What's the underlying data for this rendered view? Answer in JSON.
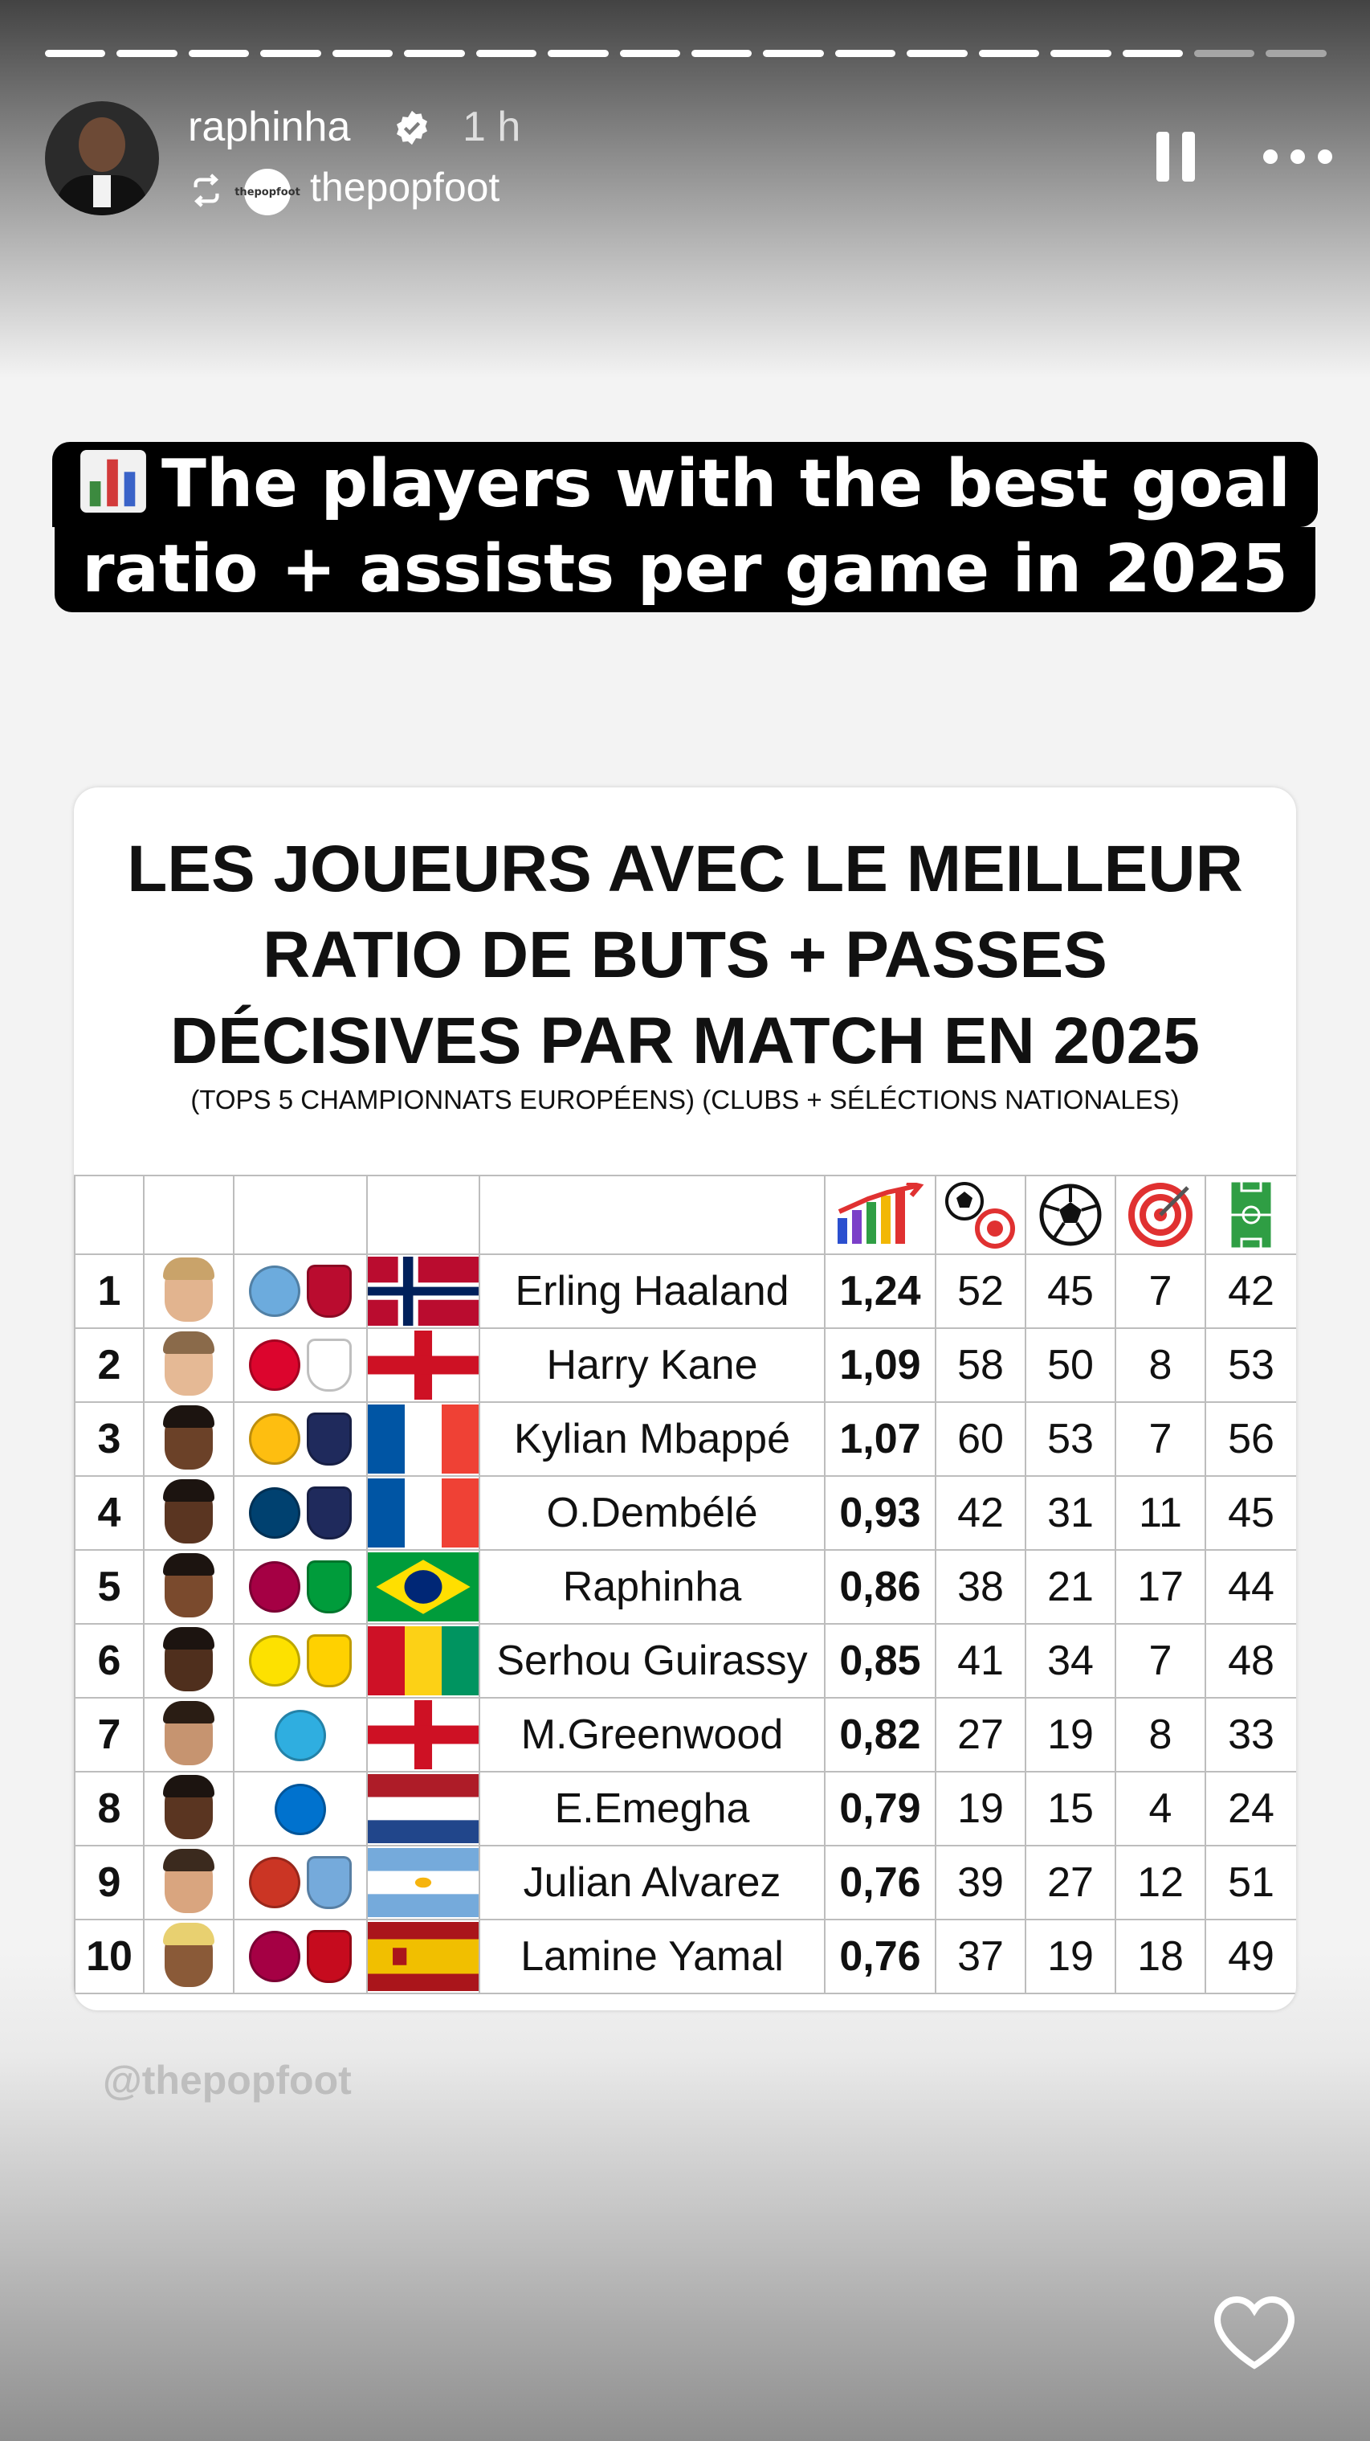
{
  "progress": {
    "total_segments": 18,
    "completed_segments": 16
  },
  "header": {
    "username": "raphinha",
    "time": "1 h",
    "source_account": "thepopfoot",
    "source_avatar_text": "thepopfoot"
  },
  "caption": {
    "emoji": "bar-chart-icon",
    "line1": "The players with the best goal",
    "line2": "ratio + assists per game in 2025"
  },
  "card": {
    "title_lines": [
      "LES JOUEURS AVEC LE MEILLEUR",
      "RATIO DE BUTS + PASSES",
      "DÉCISIVES PAR MATCH EN 2025"
    ],
    "subtitle": "(TOPS 5 CHAMPIONNATS EUROPÉENS) (CLUBS + SÉLÉCTIONS NATIONALES)",
    "column_icons": [
      "ratio-chart-icon",
      "ball-target-icon",
      "football-icon",
      "target-icon",
      "pitch-icon"
    ],
    "rows": [
      {
        "rank": "1",
        "name": "Erling Haaland",
        "ratio": "1,24",
        "ga": "52",
        "goals": "45",
        "assists": "7",
        "matches": "42",
        "flag": "norway",
        "crests": [
          "man-city-crest",
          "norway-crest"
        ]
      },
      {
        "rank": "2",
        "name": "Harry Kane",
        "ratio": "1,09",
        "ga": "58",
        "goals": "50",
        "assists": "8",
        "matches": "53",
        "flag": "england",
        "crests": [
          "bayern-crest",
          "england-crest"
        ]
      },
      {
        "rank": "3",
        "name": "Kylian Mbappé",
        "ratio": "1,07",
        "ga": "60",
        "goals": "53",
        "assists": "7",
        "matches": "56",
        "flag": "france",
        "crests": [
          "real-madrid-crest",
          "france-crest"
        ]
      },
      {
        "rank": "4",
        "name": "O.Dembélé",
        "ratio": "0,93",
        "ga": "42",
        "goals": "31",
        "assists": "11",
        "matches": "45",
        "flag": "france",
        "crests": [
          "psg-crest",
          "france-crest"
        ]
      },
      {
        "rank": "5",
        "name": "Raphinha",
        "ratio": "0,86",
        "ga": "38",
        "goals": "21",
        "assists": "17",
        "matches": "44",
        "flag": "brazil",
        "crests": [
          "barcelona-crest",
          "brazil-crest"
        ]
      },
      {
        "rank": "6",
        "name": "Serhou Guirassy",
        "ratio": "0,85",
        "ga": "41",
        "goals": "34",
        "assists": "7",
        "matches": "48",
        "flag": "guinea",
        "crests": [
          "dortmund-crest",
          "guinea-crest"
        ]
      },
      {
        "rank": "7",
        "name": "M.Greenwood",
        "ratio": "0,82",
        "ga": "27",
        "goals": "19",
        "assists": "8",
        "matches": "33",
        "flag": "england",
        "crests": [
          "marseille-crest"
        ]
      },
      {
        "rank": "8",
        "name": "E.Emegha",
        "ratio": "0,79",
        "ga": "19",
        "goals": "15",
        "assists": "4",
        "matches": "24",
        "flag": "netherlands",
        "crests": [
          "strasbourg-crest"
        ]
      },
      {
        "rank": "9",
        "name": "Julian Alvarez",
        "ratio": "0,76",
        "ga": "39",
        "goals": "27",
        "assists": "12",
        "matches": "51",
        "flag": "argentina",
        "crests": [
          "atletico-crest",
          "argentina-crest"
        ]
      },
      {
        "rank": "10",
        "name": "Lamine Yamal",
        "ratio": "0,76",
        "ga": "37",
        "goals": "19",
        "assists": "18",
        "matches": "49",
        "flag": "spain",
        "crests": [
          "barcelona-crest",
          "spain-crest"
        ]
      }
    ],
    "crest_colors": {
      "man-city-crest": "#6cabdd",
      "norway-crest": "#ba0c2f",
      "bayern-crest": "#dc052d",
      "england-crest": "#ffffff",
      "real-madrid-crest": "#febe10",
      "france-crest": "#1f2a5c",
      "psg-crest": "#004170",
      "barcelona-crest": "#a50044",
      "brazil-crest": "#009c3b",
      "dortmund-crest": "#fde100",
      "guinea-crest": "#ffd100",
      "marseille-crest": "#2faee0",
      "strasbourg-crest": "#0072ce",
      "atletico-crest": "#cb3524",
      "argentina-crest": "#75aadb",
      "spain-crest": "#c60b1e"
    }
  },
  "watermark": "@thepopfoot"
}
